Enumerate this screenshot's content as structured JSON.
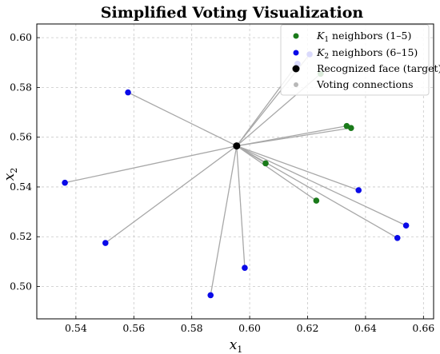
{
  "chart_data": {
    "type": "scatter",
    "title": "Simplified Voting Visualization",
    "xlabel": {
      "base": "x",
      "sub": "1"
    },
    "ylabel": {
      "base": "x",
      "sub": "2"
    },
    "xlim": [
      0.5265,
      0.6635
    ],
    "ylim": [
      0.487,
      0.6055
    ],
    "xticks": [
      "0.54",
      "0.56",
      "0.58",
      "0.60",
      "0.62",
      "0.64",
      "0.66"
    ],
    "yticks": [
      "0.50",
      "0.52",
      "0.54",
      "0.56",
      "0.58",
      "0.60"
    ],
    "grid": true,
    "legend_position": "top-right",
    "target": {
      "x": 0.5955,
      "y": 0.5565
    },
    "series": [
      {
        "name": "K1 neighbors (1–5)",
        "legend": {
          "base": "K",
          "sub": "1",
          "rest": " neighbors (1–5)"
        },
        "color": "#1a7a1a",
        "points": [
          {
            "x": 0.6055,
            "y": 0.5495
          },
          {
            "x": 0.623,
            "y": 0.5345
          },
          {
            "x": 0.6335,
            "y": 0.5645
          },
          {
            "x": 0.635,
            "y": 0.5637
          },
          {
            "x": 0.6245,
            "y": 0.5855
          }
        ]
      },
      {
        "name": "K2 neighbors (6–15)",
        "legend": {
          "base": "K",
          "sub": "2",
          "rest": " neighbors (6–15)"
        },
        "color": "#0a0ae8",
        "points": [
          {
            "x": 0.558,
            "y": 0.578
          },
          {
            "x": 0.5362,
            "y": 0.5417
          },
          {
            "x": 0.5502,
            "y": 0.5175
          },
          {
            "x": 0.5865,
            "y": 0.4965
          },
          {
            "x": 0.5983,
            "y": 0.5075
          },
          {
            "x": 0.6376,
            "y": 0.5387
          },
          {
            "x": 0.651,
            "y": 0.5195
          },
          {
            "x": 0.654,
            "y": 0.5245
          },
          {
            "x": 0.6207,
            "y": 0.5933
          },
          {
            "x": 0.6165,
            "y": 0.5895
          }
        ]
      }
    ],
    "legend": [
      {
        "key": "k1",
        "color": "#1a7a1a"
      },
      {
        "key": "k2",
        "color": "#0a0ae8"
      },
      {
        "key": "target",
        "label": "Recognized face (target)",
        "color": "#000000"
      },
      {
        "key": "conn",
        "label": "Voting connections",
        "color": "#a8a8a8"
      }
    ]
  }
}
